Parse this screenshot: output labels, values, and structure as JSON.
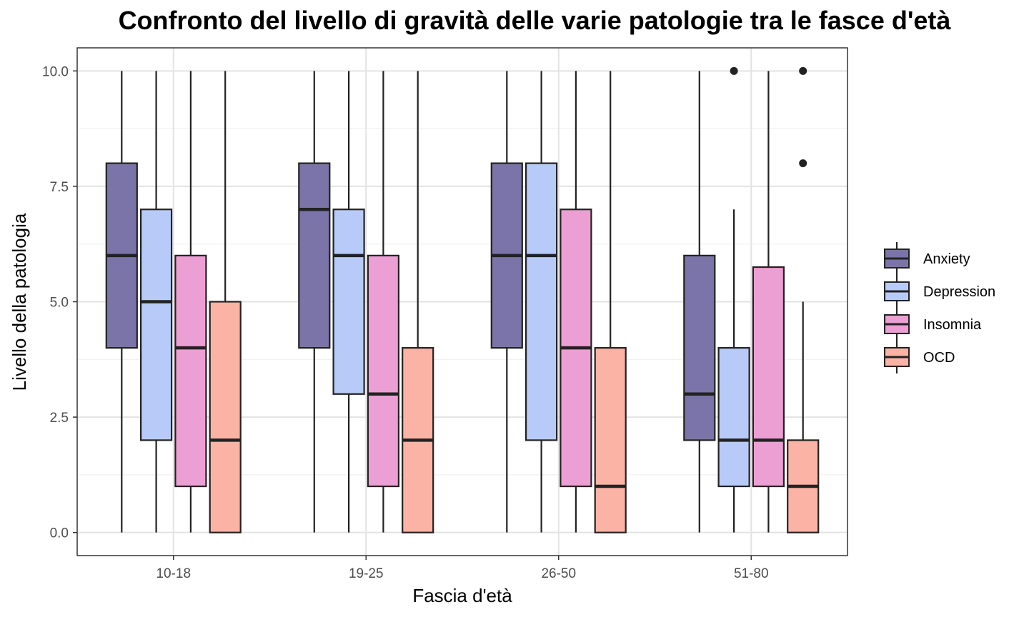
{
  "chart_data": {
    "type": "boxplot",
    "title": "Confronto del livello di gravità delle varie patologie tra le fasce d'età",
    "xlabel": "Fascia d'età",
    "ylabel": "Livello della patologia",
    "ylim": [
      -0.5,
      10.5
    ],
    "yticks": [
      0,
      2.5,
      5,
      7.5,
      10
    ],
    "ytick_labels": [
      "0.0",
      "2.5",
      "5.0",
      "7.5",
      "10.0"
    ],
    "categories": [
      "10-18",
      "19-25",
      "26-50",
      "51-80"
    ],
    "grid": true,
    "legend_position": "right",
    "series": [
      {
        "name": "Anxiety",
        "color": "#7B74A8",
        "boxes": [
          {
            "min": 0,
            "q1": 4,
            "median": 6,
            "q3": 8,
            "max": 10,
            "outliers": []
          },
          {
            "min": 0,
            "q1": 4,
            "median": 7,
            "q3": 8,
            "max": 10,
            "outliers": []
          },
          {
            "min": 0,
            "q1": 4,
            "median": 6,
            "q3": 8,
            "max": 10,
            "outliers": []
          },
          {
            "min": 0,
            "q1": 2,
            "median": 3,
            "q3": 6,
            "max": 10,
            "outliers": []
          }
        ]
      },
      {
        "name": "Depression",
        "color": "#B8CBF8",
        "boxes": [
          {
            "min": 0,
            "q1": 2,
            "median": 5,
            "q3": 7,
            "max": 10,
            "outliers": []
          },
          {
            "min": 0,
            "q1": 3,
            "median": 6,
            "q3": 7,
            "max": 10,
            "outliers": []
          },
          {
            "min": 0,
            "q1": 2,
            "median": 6,
            "q3": 8,
            "max": 10,
            "outliers": []
          },
          {
            "min": 0,
            "q1": 1,
            "median": 2,
            "q3": 4,
            "max": 7,
            "outliers": [
              10
            ]
          }
        ]
      },
      {
        "name": "Insomnia",
        "color": "#EC9FD3",
        "boxes": [
          {
            "min": 0,
            "q1": 1,
            "median": 4,
            "q3": 6,
            "max": 10,
            "outliers": []
          },
          {
            "min": 0,
            "q1": 1,
            "median": 3,
            "q3": 6,
            "max": 10,
            "outliers": []
          },
          {
            "min": 0,
            "q1": 1,
            "median": 4,
            "q3": 7,
            "max": 10,
            "outliers": []
          },
          {
            "min": 0,
            "q1": 1,
            "median": 2,
            "q3": 5.75,
            "max": 10,
            "outliers": []
          }
        ]
      },
      {
        "name": "OCD",
        "color": "#FAB3A4",
        "boxes": [
          {
            "min": 0,
            "q1": 0,
            "median": 2,
            "q3": 5,
            "max": 10,
            "outliers": []
          },
          {
            "min": 0,
            "q1": 0,
            "median": 2,
            "q3": 4,
            "max": 10,
            "outliers": []
          },
          {
            "min": 0,
            "q1": 0,
            "median": 1,
            "q3": 4,
            "max": 10,
            "outliers": []
          },
          {
            "min": 0,
            "q1": 0,
            "median": 1,
            "q3": 2,
            "max": 5,
            "outliers": [
              8,
              10
            ]
          }
        ]
      }
    ]
  }
}
